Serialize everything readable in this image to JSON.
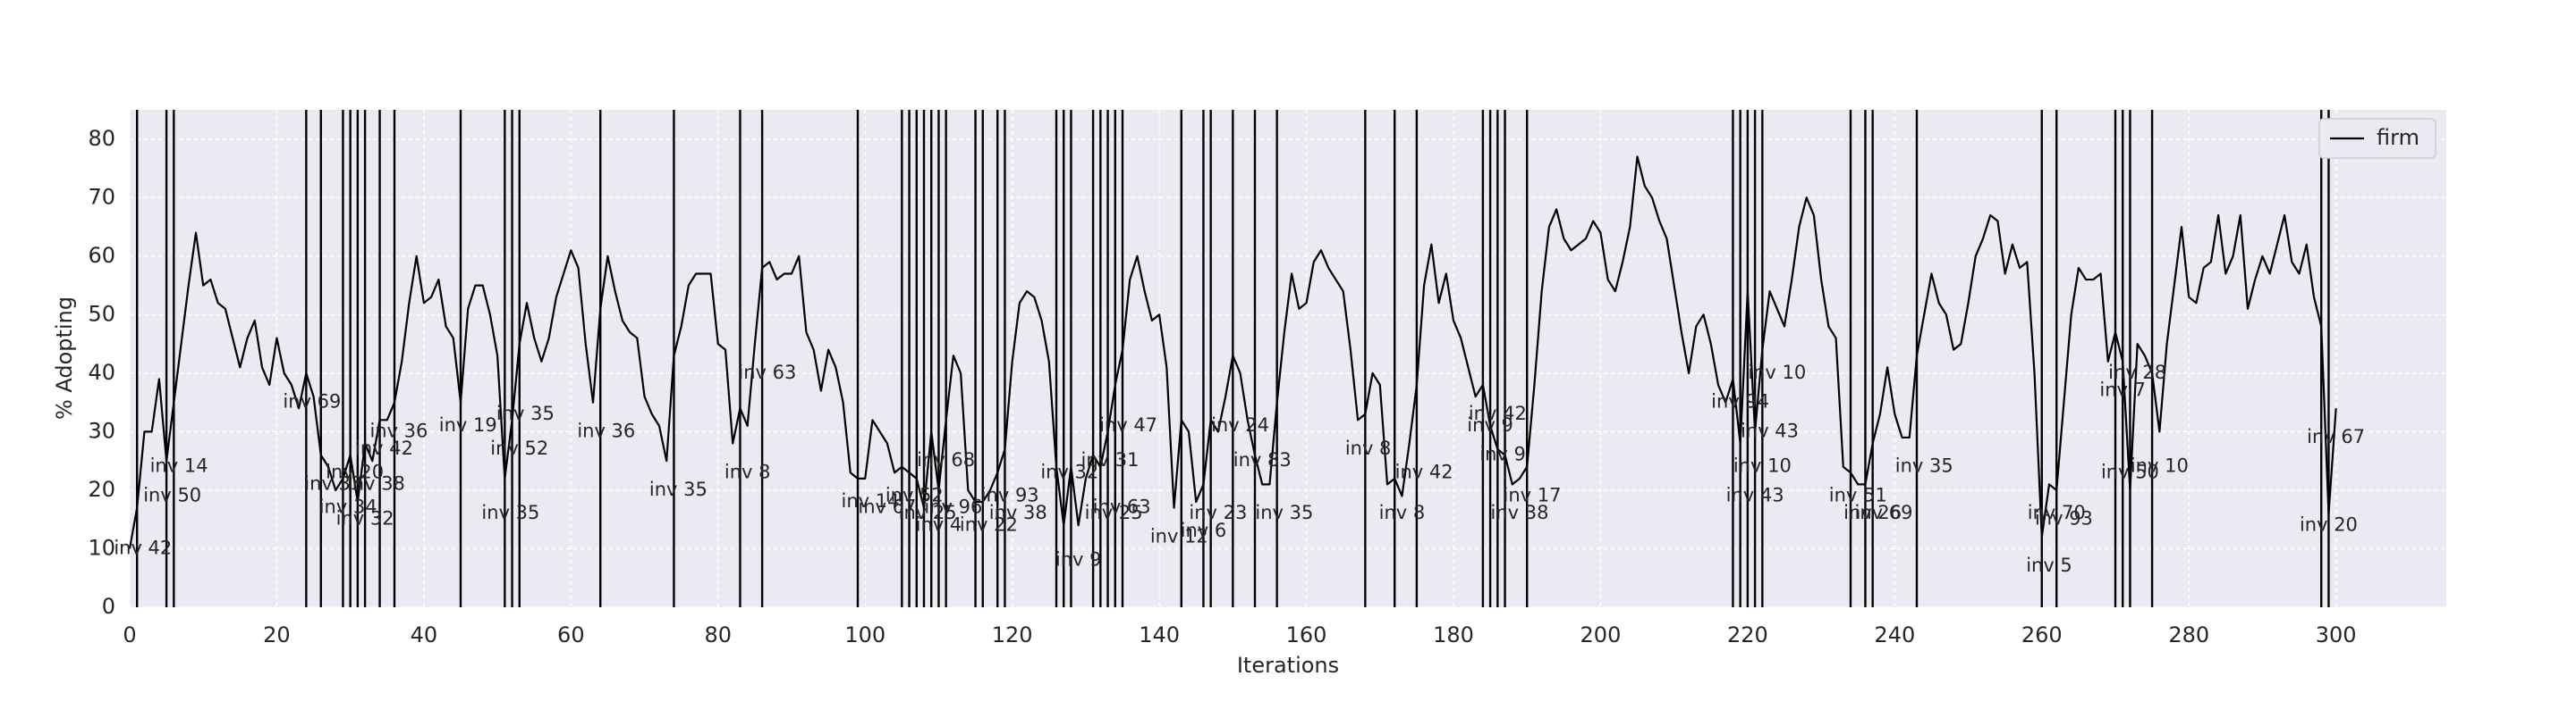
{
  "chart_data": {
    "type": "line",
    "xlabel": "Iterations",
    "ylabel": "% Adopting",
    "xlim": [
      0,
      315
    ],
    "ylim": [
      0,
      85
    ],
    "xticks": [
      0,
      20,
      40,
      60,
      80,
      100,
      120,
      140,
      160,
      180,
      200,
      220,
      240,
      260,
      280,
      300
    ],
    "yticks": [
      0,
      10,
      20,
      30,
      40,
      50,
      60,
      70,
      80
    ],
    "grid": true,
    "legend": "upper right",
    "x": [
      0,
      1,
      2,
      3,
      4,
      5,
      6,
      7,
      8,
      9,
      10,
      11,
      12,
      13,
      14,
      15,
      16,
      17,
      18,
      19,
      20,
      21,
      22,
      23,
      24,
      25,
      26,
      27,
      28,
      29,
      30,
      31,
      32,
      33,
      34,
      35,
      36,
      37,
      38,
      39,
      40,
      41,
      42,
      43,
      44,
      45,
      46,
      47,
      48,
      49,
      50,
      51,
      52,
      53,
      54,
      55,
      56,
      57,
      58,
      59,
      60,
      61,
      62,
      63,
      64,
      65,
      66,
      67,
      68,
      69,
      70,
      71,
      72,
      73,
      74,
      75,
      76,
      77,
      78,
      79,
      80,
      81,
      82,
      83,
      84,
      85,
      86,
      87,
      88,
      89,
      90,
      91,
      92,
      93,
      94,
      95,
      96,
      97,
      98,
      99,
      100,
      101,
      102,
      103,
      104,
      105,
      106,
      107,
      108,
      109,
      110,
      111,
      112,
      113,
      114,
      115,
      116,
      117,
      118,
      119,
      120,
      121,
      122,
      123,
      124,
      125,
      126,
      127,
      128,
      129,
      130,
      131,
      132,
      133,
      134,
      135,
      136,
      137,
      138,
      139,
      140,
      141,
      142,
      143,
      144,
      145,
      146,
      147,
      148,
      149,
      150,
      151,
      152,
      153,
      154,
      155,
      156,
      157,
      158,
      159,
      160,
      161,
      162,
      163,
      164,
      165,
      166,
      167,
      168,
      169,
      170,
      171,
      172,
      173,
      174,
      175,
      176,
      177,
      178,
      179,
      180,
      181,
      182,
      183,
      184,
      185,
      186,
      187,
      188,
      189,
      190,
      191,
      192,
      193,
      194,
      195,
      196,
      197,
      198,
      199,
      200,
      201,
      202,
      203,
      204,
      205,
      206,
      207,
      208,
      209,
      210,
      211,
      212,
      213,
      214,
      215,
      216,
      217,
      218,
      219,
      220,
      221,
      222,
      223,
      224,
      225,
      226,
      227,
      228,
      229,
      230,
      231,
      232,
      233,
      234,
      235,
      236,
      237,
      238,
      239,
      240,
      241,
      242,
      243,
      244,
      245,
      246,
      247,
      248,
      249,
      250,
      251,
      252,
      253,
      254,
      255,
      256,
      257,
      258,
      259,
      260,
      261,
      262,
      263,
      264,
      265,
      266,
      267,
      268,
      269,
      270,
      271,
      272,
      273,
      274,
      275,
      276,
      277,
      278,
      279,
      280,
      281,
      282,
      283,
      284,
      285,
      286,
      287,
      288,
      289,
      290,
      291,
      292,
      293,
      294,
      295,
      296,
      297,
      298,
      299,
      300
    ],
    "series": [
      {
        "name": "firm",
        "color": "#000000",
        "values": [
          10,
          17,
          30,
          30,
          39,
          25,
          35,
          45,
          55,
          64,
          55,
          56,
          52,
          51,
          46,
          41,
          46,
          49,
          41,
          38,
          46,
          40,
          38,
          34,
          40,
          36,
          26,
          24,
          20,
          22,
          26,
          18,
          28,
          25,
          32,
          32,
          35,
          42,
          52,
          60,
          52,
          53,
          56,
          48,
          46,
          35,
          51,
          55,
          55,
          50,
          43,
          22,
          32,
          45,
          52,
          46,
          42,
          46,
          53,
          57,
          61,
          58,
          45,
          35,
          51,
          60,
          54,
          49,
          47,
          46,
          36,
          33,
          31,
          25,
          43,
          48,
          55,
          57,
          57,
          57,
          45,
          44,
          28,
          34,
          31,
          45,
          58,
          59,
          56,
          57,
          57,
          60,
          47,
          44,
          37,
          44,
          41,
          35,
          23,
          22,
          22,
          32,
          30,
          28,
          23,
          24,
          23,
          22,
          17,
          30,
          20,
          32,
          43,
          40,
          20,
          18,
          18,
          20,
          23,
          27,
          42,
          52,
          54,
          53,
          49,
          42,
          24,
          14,
          24,
          14,
          22,
          26,
          24,
          30,
          38,
          44,
          56,
          60,
          54,
          49,
          50,
          41,
          17,
          32,
          30,
          18,
          21,
          32,
          30,
          36,
          43,
          40,
          32,
          26,
          21,
          21,
          35,
          47,
          57,
          51,
          52,
          59,
          61,
          58,
          56,
          54,
          44,
          32,
          33,
          40,
          38,
          21,
          22,
          19,
          28,
          38,
          55,
          62,
          52,
          57,
          49,
          46,
          41,
          36,
          38,
          31,
          27,
          26,
          21,
          22,
          24,
          38,
          54,
          65,
          68,
          63,
          61,
          62,
          63,
          66,
          64,
          56,
          54,
          59,
          65,
          77,
          72,
          70,
          66,
          63,
          55,
          47,
          40,
          48,
          50,
          45,
          38,
          35,
          39,
          28,
          54,
          30,
          44,
          54,
          51,
          48,
          56,
          65,
          70,
          67,
          56,
          48,
          46,
          24,
          23,
          21,
          21,
          28,
          33,
          41,
          33,
          29,
          29,
          43,
          50,
          57,
          52,
          50,
          44,
          45,
          52,
          60,
          63,
          67,
          66,
          57,
          62,
          58,
          59,
          40,
          12,
          21,
          20,
          35,
          50,
          58,
          56,
          56,
          57,
          42,
          47,
          42,
          20,
          45,
          43,
          40,
          30,
          45,
          55,
          65,
          53,
          52,
          58,
          59,
          67,
          57,
          60,
          67,
          51,
          56,
          60,
          57,
          62,
          67,
          59,
          57,
          62,
          53,
          48,
          16,
          34
        ]
      }
    ],
    "vlines": [
      1,
      5,
      6,
      24,
      26,
      29,
      30,
      31,
      32,
      34,
      36,
      45,
      51,
      52,
      53,
      64,
      74,
      83,
      86,
      99,
      105,
      106,
      107,
      108,
      109,
      110,
      111,
      115,
      116,
      118,
      119,
      126,
      127,
      128,
      131,
      132,
      133,
      134,
      135,
      143,
      146,
      147,
      150,
      153,
      156,
      168,
      172,
      175,
      184,
      185,
      186,
      187,
      190,
      218,
      219,
      220,
      221,
      222,
      234,
      236,
      237,
      243,
      260,
      262,
      270,
      271,
      272,
      275,
      298,
      299
    ],
    "annotations": [
      {
        "text": "inv 42",
        "x": 1.8,
        "y": 10
      },
      {
        "text": "inv 50",
        "x": 5.8,
        "y": 19
      },
      {
        "text": "inv 14",
        "x": 6.7,
        "y": 24
      },
      {
        "text": "inv 69",
        "x": 24.8,
        "y": 35
      },
      {
        "text": "inv 20",
        "x": 30.6,
        "y": 23
      },
      {
        "text": "inv 42",
        "x": 34.6,
        "y": 27
      },
      {
        "text": "inv 36",
        "x": 36.6,
        "y": 30
      },
      {
        "text": "inv 33",
        "x": 27.7,
        "y": 21
      },
      {
        "text": "inv 38",
        "x": 33.5,
        "y": 21
      },
      {
        "text": "inv 34",
        "x": 29.7,
        "y": 17
      },
      {
        "text": "inv 32",
        "x": 32,
        "y": 15
      },
      {
        "text": "inv 19",
        "x": 46,
        "y": 31
      },
      {
        "text": "inv 35",
        "x": 53.8,
        "y": 33
      },
      {
        "text": "inv 52",
        "x": 53,
        "y": 27
      },
      {
        "text": "inv 35",
        "x": 51.8,
        "y": 16
      },
      {
        "text": "inv 36",
        "x": 64.8,
        "y": 30
      },
      {
        "text": "inv 35",
        "x": 74.6,
        "y": 20
      },
      {
        "text": "inv 63",
        "x": 86.7,
        "y": 40
      },
      {
        "text": "inv 8",
        "x": 84,
        "y": 23
      },
      {
        "text": "inv 14",
        "x": 100.7,
        "y": 18
      },
      {
        "text": "inv 67",
        "x": 103,
        "y": 17
      },
      {
        "text": "inv 52",
        "x": 106.7,
        "y": 19
      },
      {
        "text": "inv 25",
        "x": 108.5,
        "y": 16
      },
      {
        "text": "inv 4",
        "x": 110,
        "y": 14
      },
      {
        "text": "inv 68",
        "x": 111,
        "y": 25
      },
      {
        "text": "inv 96",
        "x": 112,
        "y": 17
      },
      {
        "text": "inv 22",
        "x": 116.8,
        "y": 14
      },
      {
        "text": "inv 93",
        "x": 119.7,
        "y": 19
      },
      {
        "text": "inv 38",
        "x": 120.8,
        "y": 16
      },
      {
        "text": "inv 32",
        "x": 127.8,
        "y": 23
      },
      {
        "text": "inv 9",
        "x": 129,
        "y": 8
      },
      {
        "text": "inv 31",
        "x": 133.3,
        "y": 25
      },
      {
        "text": "inv 47",
        "x": 135.8,
        "y": 31
      },
      {
        "text": "inv 63",
        "x": 134.9,
        "y": 17
      },
      {
        "text": "inv 25",
        "x": 133.8,
        "y": 16
      },
      {
        "text": "inv 12",
        "x": 142.7,
        "y": 12
      },
      {
        "text": "inv 6",
        "x": 146,
        "y": 13
      },
      {
        "text": "inv 23",
        "x": 148,
        "y": 16
      },
      {
        "text": "inv 24",
        "x": 151,
        "y": 31
      },
      {
        "text": "inv 83",
        "x": 154,
        "y": 25
      },
      {
        "text": "inv 35",
        "x": 157,
        "y": 16
      },
      {
        "text": "inv 8",
        "x": 168.4,
        "y": 27
      },
      {
        "text": "inv 8",
        "x": 173,
        "y": 16
      },
      {
        "text": "inv 42",
        "x": 176,
        "y": 23
      },
      {
        "text": "inv 42",
        "x": 186,
        "y": 33
      },
      {
        "text": "inv 9",
        "x": 185,
        "y": 31
      },
      {
        "text": "inv 9",
        "x": 186.7,
        "y": 26
      },
      {
        "text": "inv 17",
        "x": 190.7,
        "y": 19
      },
      {
        "text": "inv 38",
        "x": 189,
        "y": 16
      },
      {
        "text": "inv 94",
        "x": 219,
        "y": 35
      },
      {
        "text": "inv 10",
        "x": 224,
        "y": 40
      },
      {
        "text": "inv 43",
        "x": 223,
        "y": 30
      },
      {
        "text": "inv 10",
        "x": 222,
        "y": 24
      },
      {
        "text": "inv 43",
        "x": 221,
        "y": 19
      },
      {
        "text": "inv 51",
        "x": 235,
        "y": 19
      },
      {
        "text": "inv 26",
        "x": 237,
        "y": 16
      },
      {
        "text": "inv 69",
        "x": 238.5,
        "y": 16
      },
      {
        "text": "inv 35",
        "x": 244,
        "y": 24
      },
      {
        "text": "inv 5",
        "x": 261,
        "y": 7
      },
      {
        "text": "inv 70",
        "x": 262,
        "y": 16
      },
      {
        "text": "inv 93",
        "x": 263,
        "y": 15
      },
      {
        "text": "inv 7",
        "x": 271,
        "y": 37
      },
      {
        "text": "inv 28",
        "x": 273,
        "y": 40
      },
      {
        "text": "inv 50",
        "x": 272,
        "y": 23
      },
      {
        "text": "inv 10",
        "x": 276,
        "y": 24
      },
      {
        "text": "inv 67",
        "x": 300,
        "y": 29
      },
      {
        "text": "inv 20",
        "x": 299,
        "y": 14
      }
    ]
  }
}
